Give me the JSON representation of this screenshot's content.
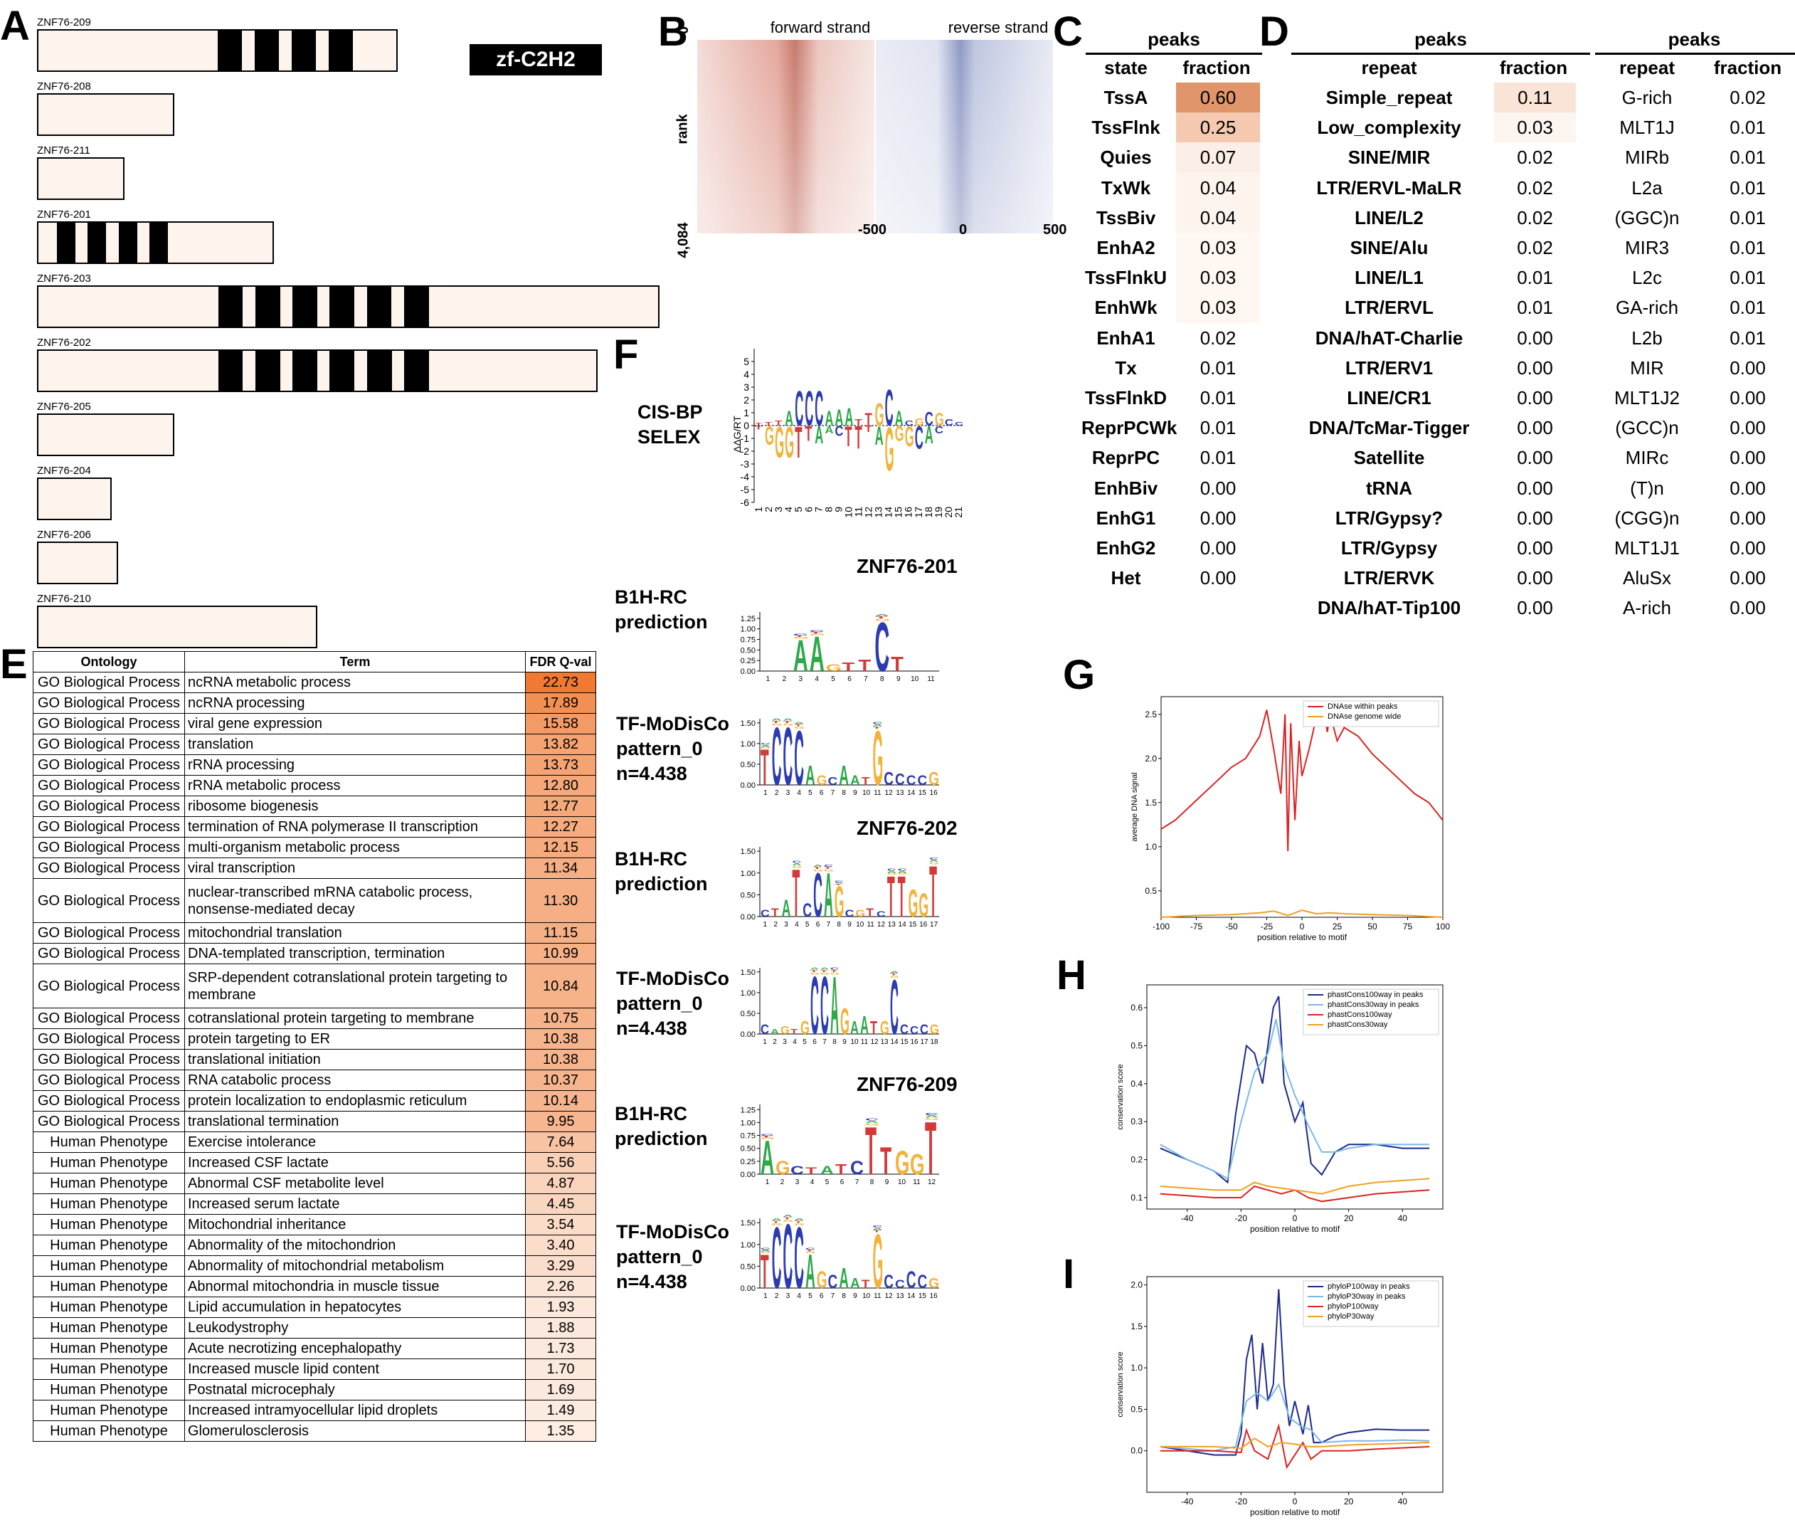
{
  "panels": {
    "A": "A",
    "B": "B",
    "C": "C",
    "D": "D",
    "E": "E",
    "F": "F",
    "G": "G",
    "H": "H",
    "I": "I"
  },
  "panel_a": {
    "legend": "zf-C2H2",
    "isoforms": [
      {
        "name": "ZNF76-209",
        "length": 0.58,
        "domains": [
          [
            0.29,
            0.33
          ],
          [
            0.35,
            0.39
          ],
          [
            0.41,
            0.45
          ],
          [
            0.47,
            0.51
          ]
        ]
      },
      {
        "name": "ZNF76-208",
        "length": 0.22,
        "domains": []
      },
      {
        "name": "ZNF76-211",
        "length": 0.14,
        "domains": []
      },
      {
        "name": "ZNF76-201",
        "length": 0.38,
        "domains": [
          [
            0.03,
            0.06
          ],
          [
            0.08,
            0.11
          ],
          [
            0.13,
            0.16
          ],
          [
            0.18,
            0.21
          ]
        ]
      },
      {
        "name": "ZNF76-203",
        "length": 1.0,
        "domains": [
          [
            0.29,
            0.33
          ],
          [
            0.35,
            0.39
          ],
          [
            0.41,
            0.45
          ],
          [
            0.47,
            0.51
          ],
          [
            0.53,
            0.57
          ],
          [
            0.59,
            0.63
          ]
        ]
      },
      {
        "name": "ZNF76-202",
        "length": 0.9,
        "domains": [
          [
            0.29,
            0.33
          ],
          [
            0.35,
            0.39
          ],
          [
            0.41,
            0.45
          ],
          [
            0.47,
            0.51
          ],
          [
            0.53,
            0.57
          ],
          [
            0.59,
            0.63
          ]
        ]
      },
      {
        "name": "ZNF76-205",
        "length": 0.22,
        "domains": []
      },
      {
        "name": "ZNF76-204",
        "length": 0.12,
        "domains": []
      },
      {
        "name": "ZNF76-206",
        "length": 0.13,
        "domains": []
      },
      {
        "name": "ZNF76-210",
        "length": 0.45,
        "domains": []
      }
    ]
  },
  "panel_b": {
    "forward_label": "forward strand",
    "reverse_label": "reverse strand",
    "y_label": "rank",
    "y_ticks": [
      "0",
      "4,084"
    ],
    "x_ticks": [
      "-500",
      "0",
      "500"
    ]
  },
  "panel_c": {
    "header": "peaks",
    "col_state": "state",
    "col_fraction": "fraction",
    "rows": [
      [
        "TssA",
        "0.60"
      ],
      [
        "TssFlnk",
        "0.25"
      ],
      [
        "Quies",
        "0.07"
      ],
      [
        "TxWk",
        "0.04"
      ],
      [
        "TssBiv",
        "0.04"
      ],
      [
        "EnhA2",
        "0.03"
      ],
      [
        "TssFlnkU",
        "0.03"
      ],
      [
        "EnhWk",
        "0.03"
      ],
      [
        "EnhA1",
        "0.02"
      ],
      [
        "Tx",
        "0.01"
      ],
      [
        "TssFlnkD",
        "0.01"
      ],
      [
        "ReprPCWk",
        "0.01"
      ],
      [
        "ReprPC",
        "0.01"
      ],
      [
        "EnhBiv",
        "0.00"
      ],
      [
        "EnhG1",
        "0.00"
      ],
      [
        "EnhG2",
        "0.00"
      ],
      [
        "Het",
        "0.00"
      ]
    ]
  },
  "panel_d": {
    "header": "peaks",
    "col_repeat": "repeat",
    "col_fraction": "fraction",
    "rows": [
      [
        "Simple_repeat",
        "0.11"
      ],
      [
        "Low_complexity",
        "0.03"
      ],
      [
        "SINE/MIR",
        "0.02"
      ],
      [
        "LTR/ERVL-MaLR",
        "0.02"
      ],
      [
        "LINE/L2",
        "0.02"
      ],
      [
        "SINE/Alu",
        "0.02"
      ],
      [
        "LINE/L1",
        "0.01"
      ],
      [
        "LTR/ERVL",
        "0.01"
      ],
      [
        "DNA/hAT-Charlie",
        "0.00"
      ],
      [
        "LTR/ERV1",
        "0.00"
      ],
      [
        "LINE/CR1",
        "0.00"
      ],
      [
        "DNA/TcMar-Tigger",
        "0.00"
      ],
      [
        "Satellite",
        "0.00"
      ],
      [
        "tRNA",
        "0.00"
      ],
      [
        "LTR/Gypsy?",
        "0.00"
      ],
      [
        "LTR/Gypsy",
        "0.00"
      ],
      [
        "LTR/ERVK",
        "0.00"
      ],
      [
        "DNA/hAT-Tip100",
        "0.00"
      ]
    ],
    "header2": "peaks",
    "col_repeat2": "repeat",
    "col_fraction2": "fraction",
    "rows2": [
      [
        "G-rich",
        "0.02"
      ],
      [
        "MLT1J",
        "0.01"
      ],
      [
        "MIRb",
        "0.01"
      ],
      [
        "L2a",
        "0.01"
      ],
      [
        "(GGC)n",
        "0.01"
      ],
      [
        "MIR3",
        "0.01"
      ],
      [
        "L2c",
        "0.01"
      ],
      [
        "GA-rich",
        "0.01"
      ],
      [
        "L2b",
        "0.01"
      ],
      [
        "MIR",
        "0.00"
      ],
      [
        "MLT1J2",
        "0.00"
      ],
      [
        "(GCC)n",
        "0.00"
      ],
      [
        "MIRc",
        "0.00"
      ],
      [
        "(T)n",
        "0.00"
      ],
      [
        "(CGG)n",
        "0.00"
      ],
      [
        "MLT1J1",
        "0.00"
      ],
      [
        "AluSx",
        "0.00"
      ],
      [
        "A-rich",
        "0.00"
      ]
    ]
  },
  "panel_e": {
    "col_ontology": "Ontology",
    "col_term": "Term",
    "col_q": "FDR Q-val",
    "rows": [
      [
        "GO Biological Process",
        "ncRNA metabolic process",
        "22.73"
      ],
      [
        "GO Biological Process",
        "ncRNA processing",
        "17.89"
      ],
      [
        "GO Biological Process",
        "viral gene expression",
        "15.58"
      ],
      [
        "GO Biological Process",
        "translation",
        "13.82"
      ],
      [
        "GO Biological Process",
        "rRNA processing",
        "13.73"
      ],
      [
        "GO Biological Process",
        "rRNA metabolic process",
        "12.80"
      ],
      [
        "GO Biological Process",
        "ribosome biogenesis",
        "12.77"
      ],
      [
        "GO Biological Process",
        "termination of RNA polymerase II transcription",
        "12.27"
      ],
      [
        "GO Biological Process",
        "multi-organism metabolic process",
        "12.15"
      ],
      [
        "GO Biological Process",
        "viral transcription",
        "11.34"
      ],
      [
        "GO Biological Process",
        "nuclear-transcribed mRNA catabolic process, nonsense-mediated decay",
        "11.30"
      ],
      [
        "GO Biological Process",
        "mitochondrial translation",
        "11.15"
      ],
      [
        "GO Biological Process",
        "DNA-templated transcription, termination",
        "10.99"
      ],
      [
        "GO Biological Process",
        "SRP-dependent cotranslational protein targeting to membrane",
        "10.84"
      ],
      [
        "GO Biological Process",
        "cotranslational protein targeting to membrane",
        "10.75"
      ],
      [
        "GO Biological Process",
        "protein targeting to ER",
        "10.38"
      ],
      [
        "GO Biological Process",
        "translational initiation",
        "10.38"
      ],
      [
        "GO Biological Process",
        "RNA catabolic process",
        "10.37"
      ],
      [
        "GO Biological Process",
        "protein localization to endoplasmic reticulum",
        "10.14"
      ],
      [
        "GO Biological Process",
        "translational termination",
        "9.95"
      ],
      [
        "Human Phenotype",
        "Exercise intolerance",
        "7.64"
      ],
      [
        "Human Phenotype",
        "Increased CSF lactate",
        "5.56"
      ],
      [
        "Human Phenotype",
        "Abnormal CSF metabolite level",
        "4.87"
      ],
      [
        "Human Phenotype",
        "Increased serum lactate",
        "4.45"
      ],
      [
        "Human Phenotype",
        "Mitochondrial inheritance",
        "3.54"
      ],
      [
        "Human Phenotype",
        "Abnormality of the mitochondrion",
        "3.40"
      ],
      [
        "Human Phenotype",
        "Abnormality of mitochondrial metabolism",
        "3.29"
      ],
      [
        "Human Phenotype",
        "Abnormal mitochondria in muscle tissue",
        "2.26"
      ],
      [
        "Human Phenotype",
        "Lipid accumulation in hepatocytes",
        "1.93"
      ],
      [
        "Human Phenotype",
        "Leukodystrophy",
        "1.88"
      ],
      [
        "Human Phenotype",
        "Acute necrotizing encephalopathy",
        "1.73"
      ],
      [
        "Human Phenotype",
        "Increased muscle lipid content",
        "1.70"
      ],
      [
        "Human Phenotype",
        "Postnatal microcephaly",
        "1.69"
      ],
      [
        "Human Phenotype",
        "Increased intramyocellular lipid droplets",
        "1.49"
      ],
      [
        "Human Phenotype",
        "Glomerulosclerosis",
        "1.35"
      ]
    ]
  },
  "panel_f": {
    "cisbp_label": "CIS-BP\nSELEX",
    "cisbp_ylabel": "ΔΔG/RT",
    "sections": [
      {
        "title": "ZNF76-201",
        "b1h": "B1H-RC\nprediction",
        "modisco": "TF-MoDisCo\npattern_0\nn=4.438",
        "b1h_logo": "  AAGTTCT  ",
        "modisco_logo": "TCCCAGCAATGCCCCG"
      },
      {
        "title": "ZNF76-202",
        "b1h": "B1H-RC\nprediction",
        "modisco": "TF-MoDisCo\npattern_0\nn=4.438",
        "b1h_logo": "CTATCCAGCGTCTTGGT",
        "modisco_logo": "CAGTGCCAGAATGCCCCG"
      },
      {
        "title": "ZNF76-209",
        "b1h": "B1H-RC\nprediction",
        "modisco": "TF-MoDisCo\npattern_0\nn=4.438",
        "b1h_logo": "AGCTATCTTGGT",
        "modisco_logo": "TCCCAGCAATGCCCCG"
      }
    ]
  },
  "chart_data": [
    {
      "type": "line",
      "xlabel": "position relative to motif",
      "ylabel": "average DNA signal",
      "xlim": [
        -100,
        100
      ],
      "ylim": [
        0.2,
        2.7
      ],
      "x_ticks": [
        -100,
        -75,
        -50,
        -25,
        0,
        25,
        50,
        75,
        100
      ],
      "y_ticks": [
        0.5,
        1.0,
        1.5,
        2.0,
        2.5
      ],
      "legend": "top-right",
      "series": [
        {
          "name": "DNAse within peaks",
          "color": "#dd2222",
          "x": [
            -100,
            -90,
            -80,
            -70,
            -60,
            -50,
            -40,
            -30,
            -25,
            -20,
            -15,
            -12,
            -10,
            -8,
            -5,
            -2,
            0,
            5,
            10,
            15,
            18,
            20,
            25,
            30,
            40,
            50,
            60,
            70,
            80,
            90,
            100
          ],
          "y": [
            1.2,
            1.3,
            1.45,
            1.6,
            1.75,
            1.9,
            2.0,
            2.25,
            2.55,
            2.1,
            1.6,
            2.5,
            0.95,
            2.4,
            1.3,
            2.2,
            1.8,
            2.1,
            2.45,
            2.6,
            2.3,
            2.5,
            2.2,
            2.35,
            2.25,
            2.05,
            1.9,
            1.75,
            1.6,
            1.5,
            1.3
          ]
        },
        {
          "name": "DNAse genome wide",
          "color": "#f0a020",
          "x": [
            -100,
            -75,
            -50,
            -30,
            -20,
            -10,
            0,
            10,
            20,
            30,
            50,
            75,
            100
          ],
          "y": [
            0.2,
            0.22,
            0.23,
            0.25,
            0.27,
            0.22,
            0.28,
            0.24,
            0.25,
            0.24,
            0.23,
            0.22,
            0.2
          ]
        }
      ]
    },
    {
      "type": "line",
      "xlabel": "position relative to motif",
      "ylabel": "conservation score",
      "xlim": [
        -55,
        55
      ],
      "ylim": [
        0.07,
        0.66
      ],
      "x_ticks": [
        -40,
        -20,
        0,
        20,
        40
      ],
      "y_ticks": [
        0.1,
        0.2,
        0.3,
        0.4,
        0.5,
        0.6
      ],
      "legend": "top-right",
      "series": [
        {
          "name": "phastCons100way in peaks",
          "color": "#1c2a8a",
          "x": [
            -50,
            -40,
            -30,
            -25,
            -22,
            -18,
            -15,
            -12,
            -8,
            -6,
            -4,
            0,
            3,
            6,
            10,
            15,
            20,
            30,
            40,
            50
          ],
          "y": [
            0.23,
            0.2,
            0.17,
            0.14,
            0.32,
            0.5,
            0.48,
            0.4,
            0.6,
            0.63,
            0.4,
            0.3,
            0.35,
            0.19,
            0.16,
            0.22,
            0.24,
            0.24,
            0.23,
            0.23
          ]
        },
        {
          "name": "phastCons30way in peaks",
          "color": "#7ab8e8",
          "x": [
            -50,
            -40,
            -30,
            -25,
            -20,
            -15,
            -10,
            -7,
            -4,
            0,
            5,
            10,
            15,
            20,
            30,
            40,
            50
          ],
          "y": [
            0.24,
            0.2,
            0.17,
            0.15,
            0.3,
            0.43,
            0.48,
            0.57,
            0.45,
            0.37,
            0.29,
            0.22,
            0.22,
            0.23,
            0.24,
            0.24,
            0.24
          ]
        },
        {
          "name": "phastCons100way",
          "color": "#dd2222",
          "x": [
            -50,
            -30,
            -20,
            -15,
            -10,
            -5,
            0,
            5,
            10,
            20,
            30,
            50
          ],
          "y": [
            0.11,
            0.1,
            0.1,
            0.13,
            0.12,
            0.11,
            0.12,
            0.1,
            0.09,
            0.1,
            0.11,
            0.12
          ]
        },
        {
          "name": "phastCons30way",
          "color": "#f0a020",
          "x": [
            -50,
            -30,
            -20,
            -15,
            -10,
            0,
            10,
            20,
            30,
            50
          ],
          "y": [
            0.13,
            0.12,
            0.12,
            0.14,
            0.13,
            0.12,
            0.11,
            0.13,
            0.14,
            0.15
          ]
        }
      ]
    },
    {
      "type": "line",
      "xlabel": "position relative to motif",
      "ylabel": "conservation score",
      "xlim": [
        -55,
        55
      ],
      "ylim": [
        -0.5,
        2.1
      ],
      "x_ticks": [
        -40,
        -20,
        0,
        20,
        40
      ],
      "y_ticks": [
        0.0,
        0.5,
        1.0,
        1.5,
        2.0
      ],
      "legend": "top-right",
      "series": [
        {
          "name": "phyloP100way in peaks",
          "color": "#1c2a8a",
          "x": [
            -50,
            -40,
            -30,
            -22,
            -20,
            -18,
            -16,
            -14,
            -12,
            -10,
            -8,
            -6,
            -4,
            -2,
            0,
            3,
            5,
            7,
            10,
            15,
            20,
            30,
            40,
            50
          ],
          "y": [
            0.05,
            0.0,
            -0.05,
            -0.05,
            0.2,
            1.1,
            1.4,
            0.5,
            1.3,
            0.6,
            0.8,
            1.95,
            0.8,
            0.3,
            0.6,
            0.2,
            0.55,
            0.1,
            0.1,
            0.18,
            0.22,
            0.26,
            0.25,
            0.25
          ]
        },
        {
          "name": "phyloP30way in peaks",
          "color": "#7ab8e8",
          "x": [
            -50,
            -30,
            -22,
            -18,
            -14,
            -10,
            -6,
            -2,
            2,
            6,
            10,
            20,
            30,
            40,
            50
          ],
          "y": [
            0.05,
            0.0,
            0.05,
            0.6,
            0.7,
            0.6,
            0.8,
            0.4,
            0.3,
            0.25,
            0.1,
            0.12,
            0.12,
            0.13,
            0.12
          ]
        },
        {
          "name": "phyloP100way",
          "color": "#dd2222",
          "x": [
            -50,
            -30,
            -20,
            -18,
            -15,
            -10,
            -6,
            -3,
            0,
            3,
            6,
            10,
            20,
            30,
            50
          ],
          "y": [
            0.0,
            0.0,
            -0.02,
            0.25,
            0.0,
            -0.1,
            0.3,
            -0.2,
            -0.05,
            0.1,
            -0.1,
            0.0,
            0.0,
            0.02,
            0.05
          ]
        },
        {
          "name": "phyloP30way",
          "color": "#f0a020",
          "x": [
            -50,
            -30,
            -20,
            -15,
            -10,
            -5,
            0,
            5,
            10,
            20,
            30,
            50
          ],
          "y": [
            0.05,
            0.05,
            0.03,
            0.15,
            0.05,
            0.1,
            0.08,
            0.05,
            0.05,
            0.07,
            0.08,
            0.1
          ]
        }
      ]
    }
  ]
}
